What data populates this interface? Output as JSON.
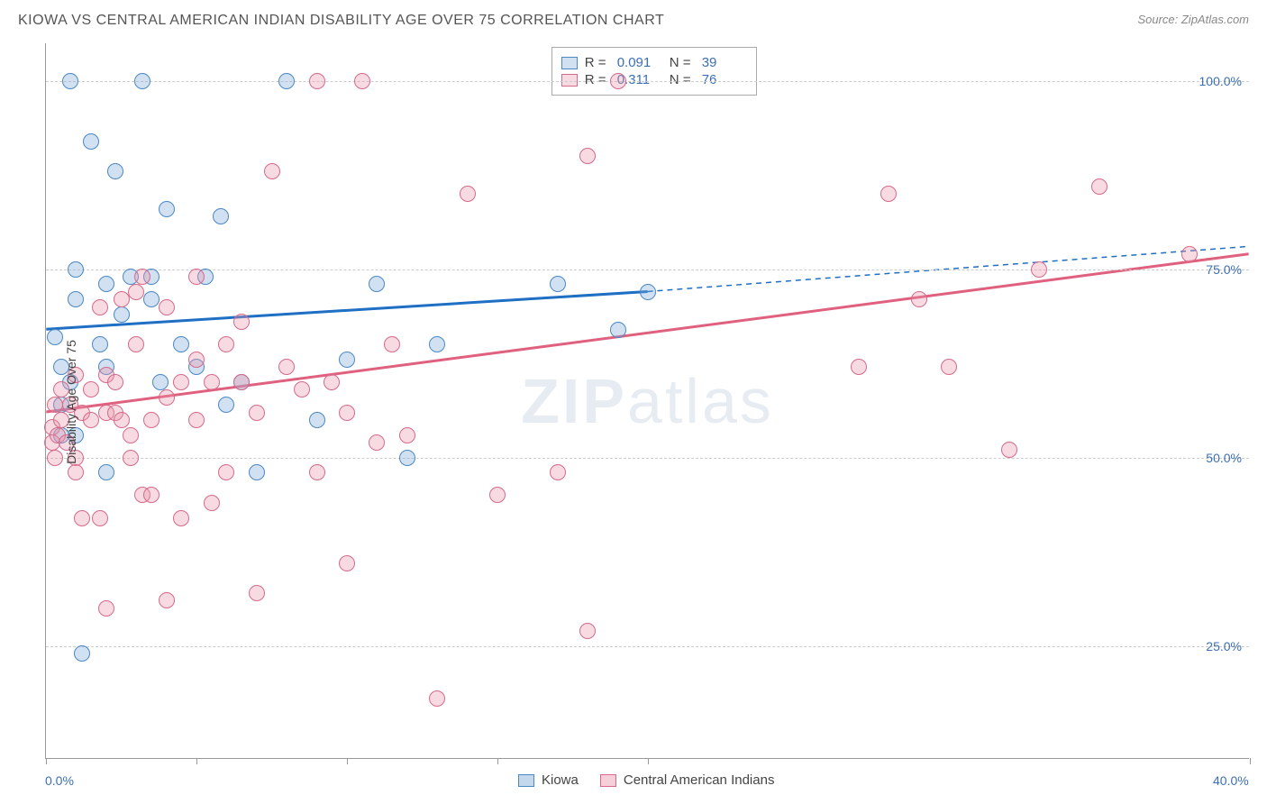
{
  "title": "KIOWA VS CENTRAL AMERICAN INDIAN DISABILITY AGE OVER 75 CORRELATION CHART",
  "source": "Source: ZipAtlas.com",
  "watermark_a": "ZIP",
  "watermark_b": "atlas",
  "ylabel": "Disability Age Over 75",
  "chart": {
    "type": "scatter",
    "xlim": [
      0,
      40
    ],
    "ylim": [
      10,
      105
    ],
    "yticks": [
      25,
      50,
      75,
      100
    ],
    "ytick_labels": [
      "25.0%",
      "50.0%",
      "75.0%",
      "100.0%"
    ],
    "xticks": [
      0,
      5,
      10,
      15,
      20,
      40
    ],
    "xtick_labels": {
      "0": "0.0%",
      "40": "40.0%"
    },
    "background_color": "#ffffff",
    "grid_color": "#cccccc",
    "series": [
      {
        "name": "Kiowa",
        "color_stroke": "#4a88c6",
        "color_fill": "rgba(122,168,216,0.35)",
        "marker_radius": 9,
        "R": "0.091",
        "N": "39",
        "trend": {
          "x1": 0,
          "y1": 67,
          "x2_solid": 20,
          "y2_solid": 72,
          "x2_dash": 40,
          "y2_dash": 78,
          "line_color": "#1f6fc4",
          "line_width": 3
        },
        "points": [
          [
            0.3,
            66
          ],
          [
            0.5,
            62
          ],
          [
            0.5,
            57
          ],
          [
            0.5,
            53
          ],
          [
            0.8,
            60
          ],
          [
            0.8,
            100
          ],
          [
            1,
            75
          ],
          [
            1,
            71
          ],
          [
            1,
            53
          ],
          [
            1.2,
            24
          ],
          [
            1.5,
            92
          ],
          [
            1.8,
            65
          ],
          [
            2,
            73
          ],
          [
            2,
            62
          ],
          [
            2,
            48
          ],
          [
            2.3,
            88
          ],
          [
            2.5,
            69
          ],
          [
            2.8,
            74
          ],
          [
            3.2,
            100
          ],
          [
            3.5,
            71
          ],
          [
            3.5,
            74
          ],
          [
            3.8,
            60
          ],
          [
            4,
            83
          ],
          [
            4.5,
            65
          ],
          [
            5,
            62
          ],
          [
            5.3,
            74
          ],
          [
            5.8,
            82
          ],
          [
            6,
            57
          ],
          [
            6.5,
            60
          ],
          [
            7,
            48
          ],
          [
            8,
            100
          ],
          [
            9,
            55
          ],
          [
            10,
            63
          ],
          [
            11,
            73
          ],
          [
            12,
            50
          ],
          [
            13,
            65
          ],
          [
            17,
            73
          ],
          [
            19,
            67
          ],
          [
            20,
            72
          ]
        ]
      },
      {
        "name": "Central American Indians",
        "color_stroke": "#d66a8a",
        "color_fill": "rgba(232,148,172,0.35)",
        "marker_radius": 9,
        "R": "0.311",
        "N": "76",
        "trend": {
          "x1": 0,
          "y1": 56,
          "x2_solid": 40,
          "y2_solid": 77,
          "x2_dash": 40,
          "y2_dash": 77,
          "line_color": "#e0607f",
          "line_width": 3
        },
        "points": [
          [
            0.2,
            52
          ],
          [
            0.2,
            54
          ],
          [
            0.3,
            50
          ],
          [
            0.3,
            57
          ],
          [
            0.4,
            53
          ],
          [
            0.5,
            59
          ],
          [
            0.5,
            55
          ],
          [
            0.7,
            52
          ],
          [
            0.8,
            57
          ],
          [
            1,
            50
          ],
          [
            1,
            61
          ],
          [
            1,
            48
          ],
          [
            1.2,
            56
          ],
          [
            1.2,
            42
          ],
          [
            1.5,
            55
          ],
          [
            1.5,
            59
          ],
          [
            1.8,
            42
          ],
          [
            1.8,
            70
          ],
          [
            2,
            61
          ],
          [
            2,
            56
          ],
          [
            2,
            30
          ],
          [
            2.3,
            60
          ],
          [
            2.3,
            56
          ],
          [
            2.5,
            71
          ],
          [
            2.5,
            55
          ],
          [
            2.8,
            50
          ],
          [
            2.8,
            53
          ],
          [
            3,
            65
          ],
          [
            3,
            72
          ],
          [
            3.2,
            74
          ],
          [
            3.2,
            45
          ],
          [
            3.5,
            45
          ],
          [
            3.5,
            55
          ],
          [
            4,
            58
          ],
          [
            4,
            70
          ],
          [
            4,
            31
          ],
          [
            4.5,
            60
          ],
          [
            4.5,
            42
          ],
          [
            5,
            74
          ],
          [
            5,
            55
          ],
          [
            5,
            63
          ],
          [
            5.5,
            60
          ],
          [
            5.5,
            44
          ],
          [
            6,
            65
          ],
          [
            6,
            48
          ],
          [
            6.5,
            68
          ],
          [
            6.5,
            60
          ],
          [
            7,
            32
          ],
          [
            7,
            56
          ],
          [
            7.5,
            88
          ],
          [
            8,
            62
          ],
          [
            8.5,
            59
          ],
          [
            9,
            100
          ],
          [
            9,
            48
          ],
          [
            9.5,
            60
          ],
          [
            10,
            56
          ],
          [
            10,
            36
          ],
          [
            10.5,
            100
          ],
          [
            11,
            52
          ],
          [
            11.5,
            65
          ],
          [
            12,
            53
          ],
          [
            13,
            18
          ],
          [
            14,
            85
          ],
          [
            15,
            45
          ],
          [
            17,
            48
          ],
          [
            18,
            27
          ],
          [
            18,
            90
          ],
          [
            19,
            100
          ],
          [
            27,
            62
          ],
          [
            28,
            85
          ],
          [
            29,
            71
          ],
          [
            30,
            62
          ],
          [
            32,
            51
          ],
          [
            33,
            75
          ],
          [
            35,
            86
          ],
          [
            38,
            77
          ]
        ]
      }
    ]
  },
  "legend_bottom": [
    {
      "label": "Kiowa",
      "fill": "rgba(122,168,216,0.45)",
      "stroke": "#4a88c6"
    },
    {
      "label": "Central American Indians",
      "fill": "rgba(232,148,172,0.45)",
      "stroke": "#d66a8a"
    }
  ]
}
